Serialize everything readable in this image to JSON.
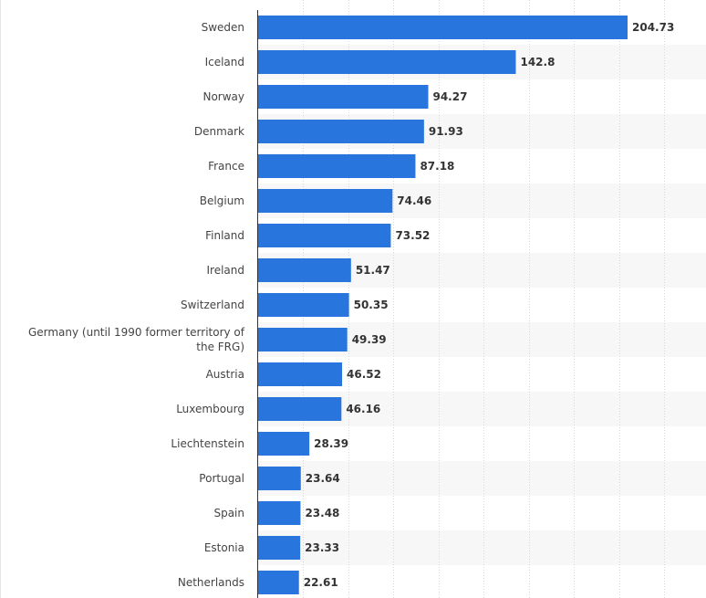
{
  "chart_data": {
    "type": "bar",
    "orientation": "horizontal",
    "categories": [
      "Sweden",
      "Iceland",
      "Norway",
      "Denmark",
      "France",
      "Belgium",
      "Finland",
      "Ireland",
      "Switzerland",
      "Germany (until 1990 former territory of the FRG)",
      "Austria",
      "Luxembourg",
      "Liechtenstein",
      "Portugal",
      "Spain",
      "Estonia",
      "Netherlands"
    ],
    "values": [
      204.73,
      142.8,
      94.27,
      91.93,
      87.18,
      74.46,
      73.52,
      51.47,
      50.35,
      49.39,
      46.52,
      46.16,
      28.39,
      23.64,
      23.48,
      23.33,
      22.61
    ],
    "value_labels": [
      "204.73",
      "142.8",
      "94.27",
      "91.93",
      "87.18",
      "74.46",
      "73.52",
      "51.47",
      "50.35",
      "49.39",
      "46.52",
      "46.16",
      "28.39",
      "23.64",
      "23.48",
      "23.33",
      "22.61"
    ],
    "xlim": [
      0,
      250
    ],
    "grid": true,
    "grid_style": "dotted vertical",
    "alternating_row_bands": true,
    "title": "",
    "xlabel": "",
    "ylabel": "",
    "colors": {
      "bar": "#2876dd",
      "row_band": "#f7f7f7",
      "grid": "#d8d8d8",
      "axis": "#333333",
      "value_text": "#333333",
      "category_text": "#444444"
    }
  }
}
